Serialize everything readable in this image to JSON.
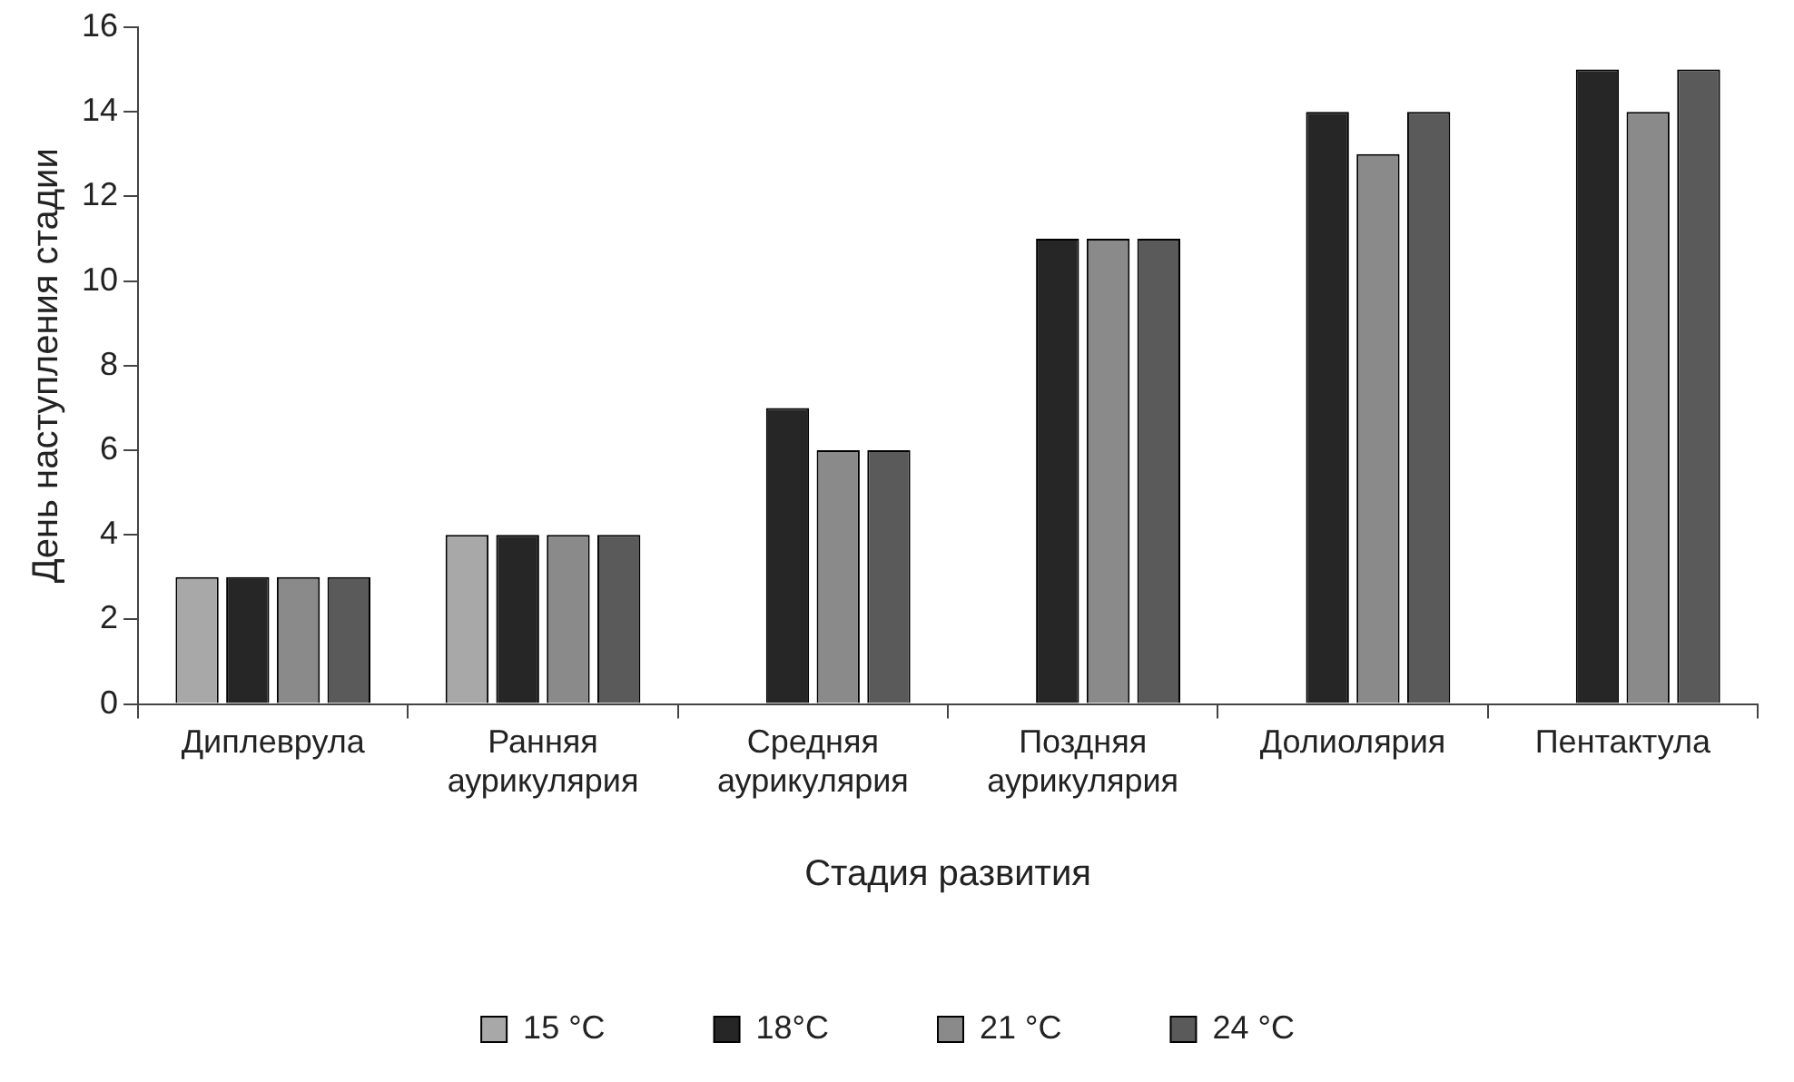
{
  "chart_data": {
    "type": "bar",
    "xlabel": "Стадия развития",
    "ylabel": "День наступления стадии",
    "categories": [
      "Диплеврула",
      "Ранняя аурикулярия",
      "Средняя аурикулярия",
      "Поздняя аурикулярия",
      "Долиолярия",
      "Пентактула"
    ],
    "series": [
      {
        "name": "15 °C",
        "color": "#a8a8a8",
        "values": [
          3,
          4,
          null,
          null,
          null,
          null
        ]
      },
      {
        "name": "18°C",
        "color": "#262626",
        "values": [
          3,
          4,
          7,
          11,
          14,
          15
        ]
      },
      {
        "name": "21 °C",
        "color": "#8a8a8a",
        "values": [
          3,
          4,
          6,
          11,
          13,
          14
        ]
      },
      {
        "name": "24 °C",
        "color": "#5a5a5a",
        "values": [
          3,
          4,
          6,
          11,
          14,
          15
        ]
      }
    ],
    "ylim": [
      0,
      16
    ],
    "yticks": [
      0,
      2,
      4,
      6,
      8,
      10,
      12,
      14,
      16
    ],
    "grid": false,
    "legend": "bottom"
  }
}
